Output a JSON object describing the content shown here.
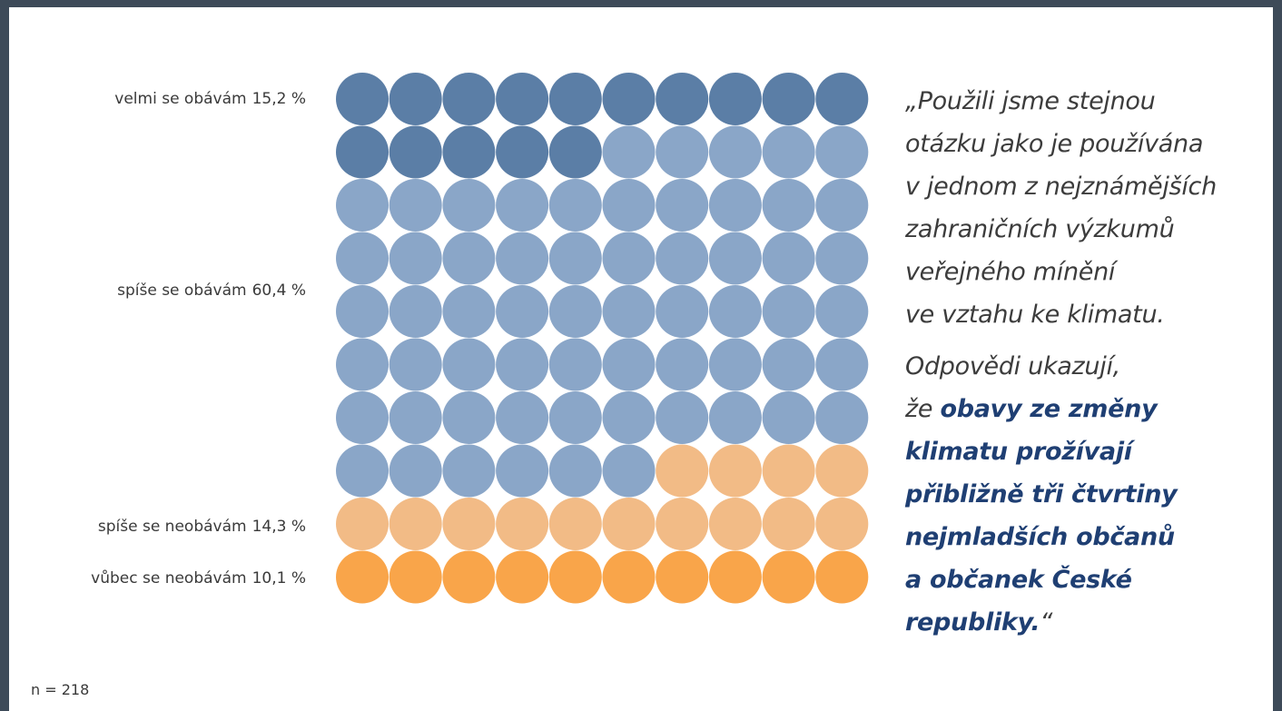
{
  "chart_data": {
    "type": "waffle",
    "categories": [
      "velmi se obávám",
      "spíše se obávám",
      "spíše se neobávám",
      "vůbec se neobávám"
    ],
    "values": [
      15.2,
      60.4,
      14.3,
      10.1
    ],
    "value_labels": [
      "15,2 %",
      "60,4 %",
      "14,3 %",
      "10,1 %"
    ],
    "colors": [
      "#5b7ea6",
      "#8aa6c8",
      "#f2bb86",
      "#f9a54a"
    ],
    "grid_size": [
      10,
      10
    ],
    "note": "n = 218"
  },
  "quote": {
    "paragraphs": [
      {
        "lines": [
          [
            {
              "text": "„Použili jsme stejnou",
              "emphasis": false
            }
          ],
          [
            {
              "text": "otázku jako je používána",
              "emphasis": false
            }
          ],
          [
            {
              "text": "v jednom z nejznámějších",
              "emphasis": false
            }
          ],
          [
            {
              "text": "zahraničních výzkumů",
              "emphasis": false
            }
          ],
          [
            {
              "text": "veřejného mínění",
              "emphasis": false
            }
          ],
          [
            {
              "text": "ve vztahu ke klimatu.",
              "emphasis": false
            }
          ]
        ]
      },
      {
        "lines": [
          [
            {
              "text": "Odpovědi ukazují,",
              "emphasis": false
            }
          ],
          [
            {
              "text": "že ",
              "emphasis": false
            },
            {
              "text": "obavy ze změny",
              "emphasis": true
            }
          ],
          [
            {
              "text": "klimatu prožívají",
              "emphasis": true
            }
          ],
          [
            {
              "text": "přibližně tři čtvrtiny",
              "emphasis": true
            }
          ],
          [
            {
              "text": "nejmladších občanů",
              "emphasis": true
            }
          ],
          [
            {
              "text": "a občanek České",
              "emphasis": true
            }
          ],
          [
            {
              "text": "republiky.",
              "emphasis": true
            },
            {
              "text": "“",
              "emphasis": false
            }
          ]
        ]
      }
    ]
  }
}
